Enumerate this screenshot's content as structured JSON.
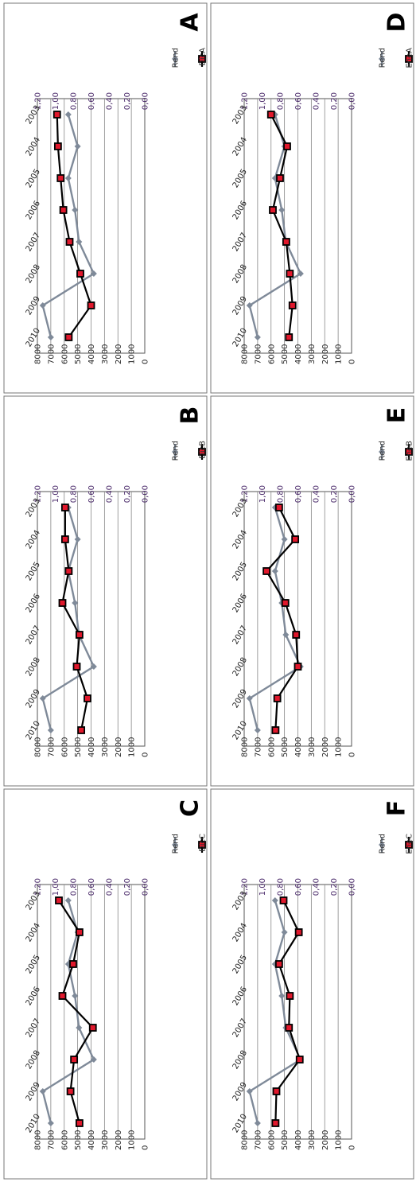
{
  "chart_data": [
    {
      "panel": "A",
      "type": "line",
      "x": [
        "2003",
        "2004",
        "2005",
        "2006",
        "2007",
        "2008",
        "2009",
        "2010"
      ],
      "y_left_ticks": [
        "0",
        "1000",
        "2000",
        "3000",
        "4000",
        "5000",
        "6000",
        "7000",
        "8000"
      ],
      "y_right_ticks": [
        "0,00",
        "0,20",
        "0,40",
        "0,60",
        "0,80",
        "1,00",
        "1,20"
      ],
      "ylim_left": [
        0,
        8000
      ],
      "ylim_right": [
        0,
        1.2
      ],
      "series": [
        {
          "name": "Rend",
          "axis": "left",
          "color": "#7f8a99",
          "marker": "diamond",
          "values": [
            5700,
            5000,
            5700,
            5200,
            4900,
            3800,
            7600,
            7000
          ]
        },
        {
          "name": "DicA",
          "axis": "right",
          "color": "#000000",
          "marker": "square",
          "values": [
            0.98,
            0.97,
            0.94,
            0.91,
            0.84,
            0.72,
            0.6,
            0.85
          ]
        }
      ]
    },
    {
      "panel": "B",
      "type": "line",
      "x": [
        "2003",
        "2004",
        "2005",
        "2006",
        "2007",
        "2008",
        "2009",
        "2010"
      ],
      "y_left_ticks": [
        "0",
        "1000",
        "2000",
        "3000",
        "4000",
        "5000",
        "6000",
        "7000",
        "8000"
      ],
      "y_right_ticks": [
        "0,00",
        "0,20",
        "0,40",
        "0,60",
        "0,80",
        "1,00",
        "1,20"
      ],
      "ylim_left": [
        0,
        8000
      ],
      "ylim_right": [
        0,
        1.2
      ],
      "series": [
        {
          "name": "Rend",
          "axis": "left",
          "color": "#7f8a99",
          "marker": "diamond",
          "values": [
            5700,
            5000,
            5700,
            5200,
            4900,
            3800,
            7600,
            7000
          ]
        },
        {
          "name": "DicB",
          "axis": "right",
          "color": "#000000",
          "marker": "square",
          "values": [
            0.89,
            0.89,
            0.85,
            0.92,
            0.73,
            0.76,
            0.64,
            0.71
          ]
        }
      ]
    },
    {
      "panel": "C",
      "type": "line",
      "x": [
        "2003",
        "2004",
        "2005",
        "2006",
        "2007",
        "2008",
        "2009",
        "2010"
      ],
      "y_left_ticks": [
        "0",
        "1000",
        "2000",
        "3000",
        "4000",
        "5000",
        "6000",
        "7000",
        "8000"
      ],
      "y_right_ticks": [
        "0,00",
        "0,20",
        "0,40",
        "0,60",
        "0,80",
        "1,00",
        "1,20"
      ],
      "ylim_left": [
        0,
        8000
      ],
      "ylim_right": [
        0,
        1.2
      ],
      "series": [
        {
          "name": "Rend",
          "axis": "left",
          "color": "#7f8a99",
          "marker": "diamond",
          "values": [
            5700,
            5000,
            5700,
            5200,
            4900,
            3800,
            7600,
            7000
          ]
        },
        {
          "name": "DicC",
          "axis": "right",
          "color": "#000000",
          "marker": "square",
          "values": [
            0.96,
            0.73,
            0.8,
            0.92,
            0.58,
            0.79,
            0.83,
            0.73
          ]
        }
      ]
    },
    {
      "panel": "D",
      "type": "line",
      "x": [
        "2003",
        "2004",
        "2005",
        "2006",
        "2007",
        "2008",
        "2009",
        "2010"
      ],
      "y_left_ticks": [
        "0",
        "1000",
        "2000",
        "3000",
        "4000",
        "5000",
        "6000",
        "7000",
        "8000"
      ],
      "y_right_ticks": [
        "0,00",
        "0,20",
        "0,40",
        "0,60",
        "0,80",
        "1,00",
        "1,20"
      ],
      "ylim_left": [
        0,
        8000
      ],
      "ylim_right": [
        0,
        1.2
      ],
      "series": [
        {
          "name": "Rend",
          "axis": "left",
          "color": "#7f8a99",
          "marker": "diamond",
          "values": [
            5700,
            5000,
            5700,
            5200,
            4900,
            3800,
            7600,
            7000
          ]
        },
        {
          "name": "EneA",
          "axis": "right",
          "color": "#000000",
          "marker": "square",
          "values": [
            0.9,
            0.72,
            0.8,
            0.88,
            0.73,
            0.69,
            0.66,
            0.7
          ]
        }
      ]
    },
    {
      "panel": "E",
      "type": "line",
      "x": [
        "2003",
        "2004",
        "2005",
        "2006",
        "2007",
        "2008",
        "2009",
        "2010"
      ],
      "y_left_ticks": [
        "0",
        "1000",
        "2000",
        "3000",
        "4000",
        "5000",
        "6000",
        "7000",
        "8000"
      ],
      "y_right_ticks": [
        "0,00",
        "0,20",
        "0,40",
        "0,60",
        "0,80",
        "1,00",
        "1,20"
      ],
      "ylim_left": [
        0,
        8000
      ],
      "ylim_right": [
        0,
        1.2
      ],
      "series": [
        {
          "name": "Rend",
          "axis": "left",
          "color": "#7f8a99",
          "marker": "diamond",
          "values": [
            5700,
            5000,
            5700,
            5200,
            4900,
            3800,
            7600,
            7000
          ]
        },
        {
          "name": "EneB",
          "axis": "right",
          "color": "#000000",
          "marker": "square",
          "values": [
            0.81,
            0.63,
            0.95,
            0.74,
            0.62,
            0.6,
            0.83,
            0.85
          ]
        }
      ]
    },
    {
      "panel": "F",
      "type": "line",
      "x": [
        "2003",
        "2004",
        "2005",
        "2006",
        "2007",
        "2008",
        "2009",
        "2010"
      ],
      "y_left_ticks": [
        "0",
        "1000",
        "2000",
        "3000",
        "4000",
        "5000",
        "6000",
        "7000",
        "8000"
      ],
      "y_right_ticks": [
        "0,00",
        "0,20",
        "0,40",
        "0,60",
        "0,80",
        "1,00",
        "1,20"
      ],
      "ylim_left": [
        0,
        8000
      ],
      "ylim_right": [
        0,
        1.2
      ],
      "series": [
        {
          "name": "Rend",
          "axis": "left",
          "color": "#7f8a99",
          "marker": "diamond",
          "values": [
            5700,
            5000,
            5700,
            5200,
            4900,
            3800,
            7600,
            7000
          ]
        },
        {
          "name": "EneC",
          "axis": "right",
          "color": "#000000",
          "marker": "square",
          "values": [
            0.76,
            0.59,
            0.81,
            0.69,
            0.7,
            0.58,
            0.84,
            0.85
          ]
        }
      ]
    }
  ]
}
